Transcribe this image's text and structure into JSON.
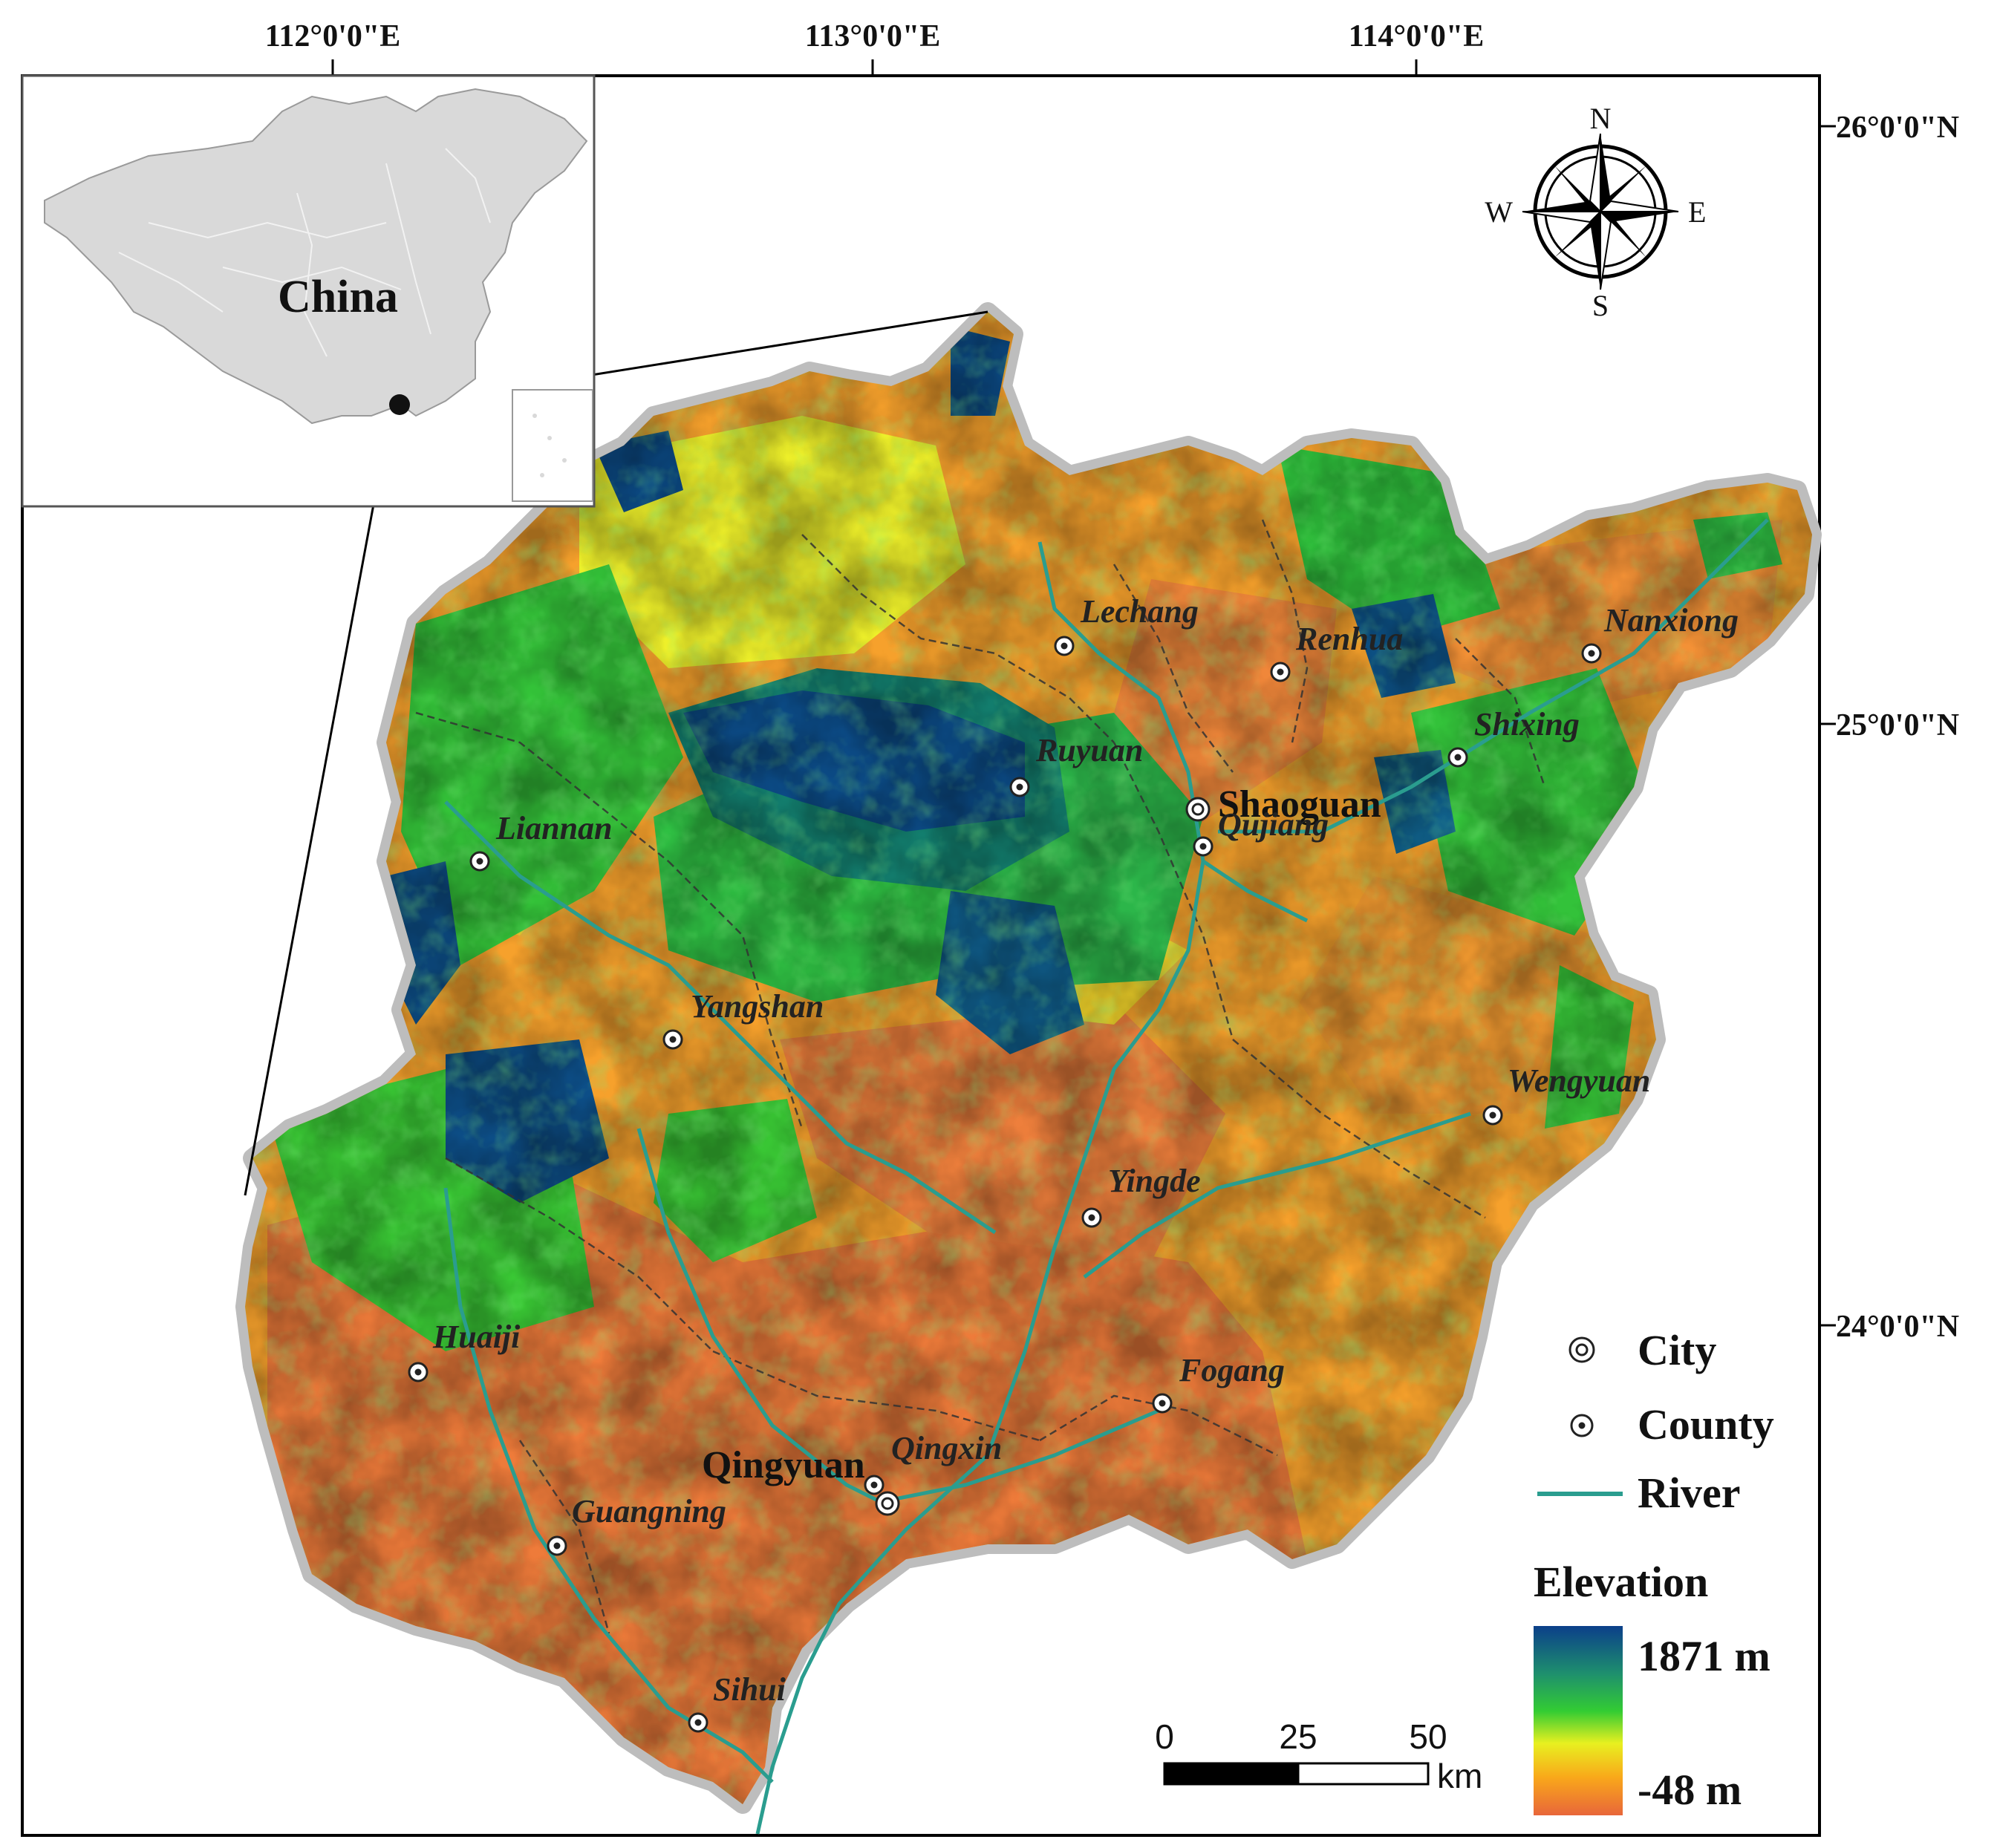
{
  "map": {
    "inset_label": "China",
    "grid_top": [
      "112°0'0\"E",
      "113°0'0\"E",
      "114°0'0\"E"
    ],
    "grid_right": [
      "26°0'0\"N",
      "25°0'0\"N",
      "24°0'0\"N"
    ],
    "cities": [
      {
        "name": "Shaoguan",
        "kind": "city"
      },
      {
        "name": "Qingyuan",
        "kind": "city"
      }
    ],
    "counties": [
      "Lechang",
      "Renhua",
      "Nanxiong",
      "Shixing",
      "Ruyuan",
      "Qujiang",
      "Liannan",
      "Yangshan",
      "Wengyuan",
      "Yingde",
      "Huaiji",
      "Fogang",
      "Qingxin",
      "Guangning",
      "Sihui"
    ]
  },
  "compass": {
    "n": "N",
    "s": "S",
    "e": "E",
    "w": "W"
  },
  "legend": {
    "city": "City",
    "county": "County",
    "river": "River",
    "elevation_title": "Elevation",
    "elev_max": "1871 m",
    "elev_min": "-48 m",
    "river_color": "#2a9d8f",
    "ramp_colors": [
      "#0b3f8a",
      "#1e8f6e",
      "#33cc33",
      "#e8f020",
      "#f9a81a",
      "#e8663a"
    ]
  },
  "scale_bar": {
    "ticks": [
      "0",
      "25",
      "50"
    ],
    "unit": "km"
  },
  "colors": {
    "low": "#ef7a35",
    "midlow": "#f8a42a",
    "mid": "#f2e52a",
    "midhigh": "#2ec63a",
    "high": "#0c4a84",
    "halo": "#b8b8b8"
  }
}
